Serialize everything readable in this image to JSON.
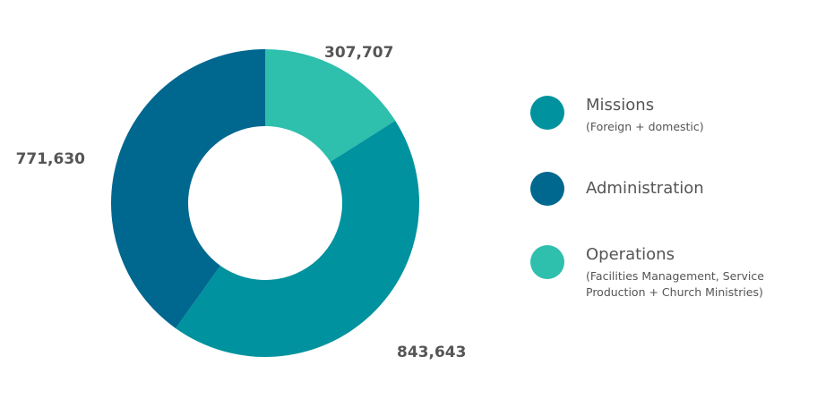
{
  "chart_data": {
    "type": "pie",
    "donut": true,
    "slices": [
      {
        "label": "Operations",
        "value": 307707,
        "value_label": "307,707",
        "color": "#2ebfad"
      },
      {
        "label": "Missions",
        "value": 843643,
        "value_label": "843,643",
        "color": "#00929e"
      },
      {
        "label": "Administration",
        "value": 771630,
        "value_label": "771,630",
        "color": "#00678f"
      }
    ],
    "legend": {
      "placement": "right",
      "items": [
        {
          "name": "Missions",
          "sub": [
            "(Foreign + domestic)"
          ],
          "color": "#00929e"
        },
        {
          "name": "Administration",
          "sub": [],
          "color": "#00678f"
        },
        {
          "name": "Operations",
          "sub": [
            "(Facilities Management, Service",
            "Production + Church Ministries)"
          ],
          "color": "#2ebfad"
        }
      ]
    }
  }
}
